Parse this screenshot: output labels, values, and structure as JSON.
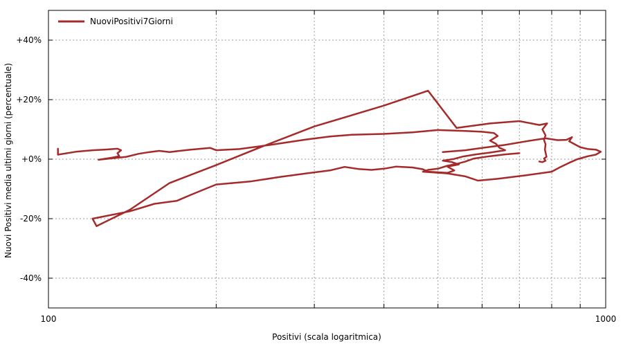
{
  "chart_data": {
    "type": "line",
    "title": "",
    "xlabel": "Positivi (scala logaritmica)",
    "ylabel": "Nuovi Positivi media ultimi giorni (percentuale)",
    "x_scale": "log",
    "xlim": [
      100,
      1000
    ],
    "ylim": [
      -50,
      50
    ],
    "grid": true,
    "legend_position": "top-left",
    "x_ticks": [
      {
        "value": 100,
        "label": "100"
      },
      {
        "value": 200,
        "label": ""
      },
      {
        "value": 300,
        "label": ""
      },
      {
        "value": 400,
        "label": ""
      },
      {
        "value": 500,
        "label": ""
      },
      {
        "value": 600,
        "label": ""
      },
      {
        "value": 700,
        "label": ""
      },
      {
        "value": 800,
        "label": ""
      },
      {
        "value": 900,
        "label": ""
      },
      {
        "value": 1000,
        "label": "1000"
      }
    ],
    "y_ticks": [
      {
        "value": 40,
        "label": "+40%"
      },
      {
        "value": 20,
        "label": "+20%"
      },
      {
        "value": 0,
        "label": "+0%"
      },
      {
        "value": -20,
        "label": "-20%"
      },
      {
        "value": -40,
        "label": "-40%"
      }
    ],
    "series": [
      {
        "name": "NuoviPositivi7Giorni",
        "color": "#a52a2a",
        "points": [
          [
            104,
            3.5
          ],
          [
            104,
            1.5
          ],
          [
            112,
            2.5
          ],
          [
            120,
            3.0
          ],
          [
            126,
            3.2
          ],
          [
            133,
            3.5
          ],
          [
            135,
            3.0
          ],
          [
            133,
            2.0
          ],
          [
            134,
            1.0
          ],
          [
            130,
            0.5
          ],
          [
            123,
            -0.2
          ],
          [
            130,
            0.3
          ],
          [
            138,
            0.8
          ],
          [
            145,
            1.8
          ],
          [
            152,
            2.4
          ],
          [
            158,
            2.8
          ],
          [
            165,
            2.4
          ],
          [
            180,
            3.2
          ],
          [
            195,
            3.8
          ],
          [
            200,
            3.0
          ],
          [
            220,
            3.4
          ],
          [
            250,
            4.8
          ],
          [
            290,
            6.6
          ],
          [
            320,
            7.6
          ],
          [
            350,
            8.2
          ],
          [
            400,
            8.5
          ],
          [
            450,
            9.0
          ],
          [
            500,
            9.8
          ],
          [
            560,
            9.5
          ],
          [
            600,
            9.2
          ],
          [
            630,
            8.8
          ],
          [
            640,
            7.8
          ],
          [
            620,
            6.2
          ],
          [
            635,
            5.2
          ],
          [
            645,
            3.8
          ],
          [
            660,
            3.0
          ],
          [
            620,
            2.2
          ],
          [
            585,
            1.6
          ],
          [
            555,
            0.9
          ],
          [
            535,
            0.1
          ],
          [
            510,
            -0.5
          ],
          [
            530,
            -1.0
          ],
          [
            545,
            -1.8
          ],
          [
            520,
            -2.5
          ],
          [
            535,
            -3.8
          ],
          [
            520,
            -4.6
          ],
          [
            480,
            -4.2
          ],
          [
            470,
            -3.4
          ],
          [
            450,
            -2.8
          ],
          [
            420,
            -2.5
          ],
          [
            400,
            -3.2
          ],
          [
            380,
            -3.6
          ],
          [
            360,
            -3.3
          ],
          [
            340,
            -2.6
          ],
          [
            320,
            -3.8
          ],
          [
            290,
            -4.8
          ],
          [
            260,
            -6.0
          ],
          [
            230,
            -7.5
          ],
          [
            200,
            -8.5
          ],
          [
            180,
            -12.0
          ],
          [
            170,
            -14.0
          ],
          [
            155,
            -15.0
          ],
          [
            140,
            -17.5
          ],
          [
            120,
            -20.0
          ],
          [
            122,
            -22.5
          ],
          [
            140,
            -17.0
          ],
          [
            165,
            -8.0
          ],
          [
            200,
            -2.0
          ],
          [
            240,
            4.0
          ],
          [
            300,
            11.0
          ],
          [
            400,
            18.0
          ],
          [
            480,
            23.0
          ],
          [
            540,
            10.5
          ],
          [
            620,
            12.0
          ],
          [
            700,
            12.8
          ],
          [
            760,
            11.5
          ],
          [
            785,
            12.0
          ],
          [
            770,
            10.0
          ],
          [
            780,
            8.0
          ],
          [
            775,
            6.5
          ],
          [
            780,
            5.0
          ],
          [
            778,
            3.2
          ],
          [
            783,
            0.8
          ],
          [
            775,
            0.2
          ],
          [
            780,
            -0.5
          ],
          [
            770,
            -1.0
          ],
          [
            760,
            -0.8
          ]
        ],
        "points_b": [
          [
            700,
            2.0
          ],
          [
            660,
            1.6
          ],
          [
            620,
            1.0
          ],
          [
            580,
            0.2
          ],
          [
            560,
            -0.8
          ],
          [
            540,
            -1.6
          ],
          [
            520,
            -2.2
          ],
          [
            500,
            -3.2
          ],
          [
            480,
            -3.6
          ],
          [
            470,
            -4.2
          ],
          [
            520,
            -4.8
          ],
          [
            560,
            -5.8
          ],
          [
            590,
            -7.2
          ],
          [
            640,
            -6.6
          ],
          [
            720,
            -5.4
          ],
          [
            800,
            -4.2
          ],
          [
            830,
            -2.6
          ],
          [
            860,
            -1.2
          ],
          [
            890,
            0.0
          ],
          [
            930,
            1.0
          ],
          [
            960,
            1.5
          ],
          [
            980,
            2.5
          ],
          [
            960,
            3.2
          ],
          [
            930,
            3.4
          ],
          [
            900,
            4.0
          ],
          [
            880,
            5.0
          ],
          [
            860,
            6.0
          ],
          [
            870,
            7.4
          ],
          [
            850,
            6.5
          ],
          [
            820,
            6.4
          ],
          [
            780,
            7.0
          ],
          [
            720,
            6.0
          ],
          [
            660,
            4.8
          ],
          [
            600,
            3.8
          ],
          [
            560,
            3.0
          ],
          [
            510,
            2.4
          ]
        ]
      }
    ]
  }
}
